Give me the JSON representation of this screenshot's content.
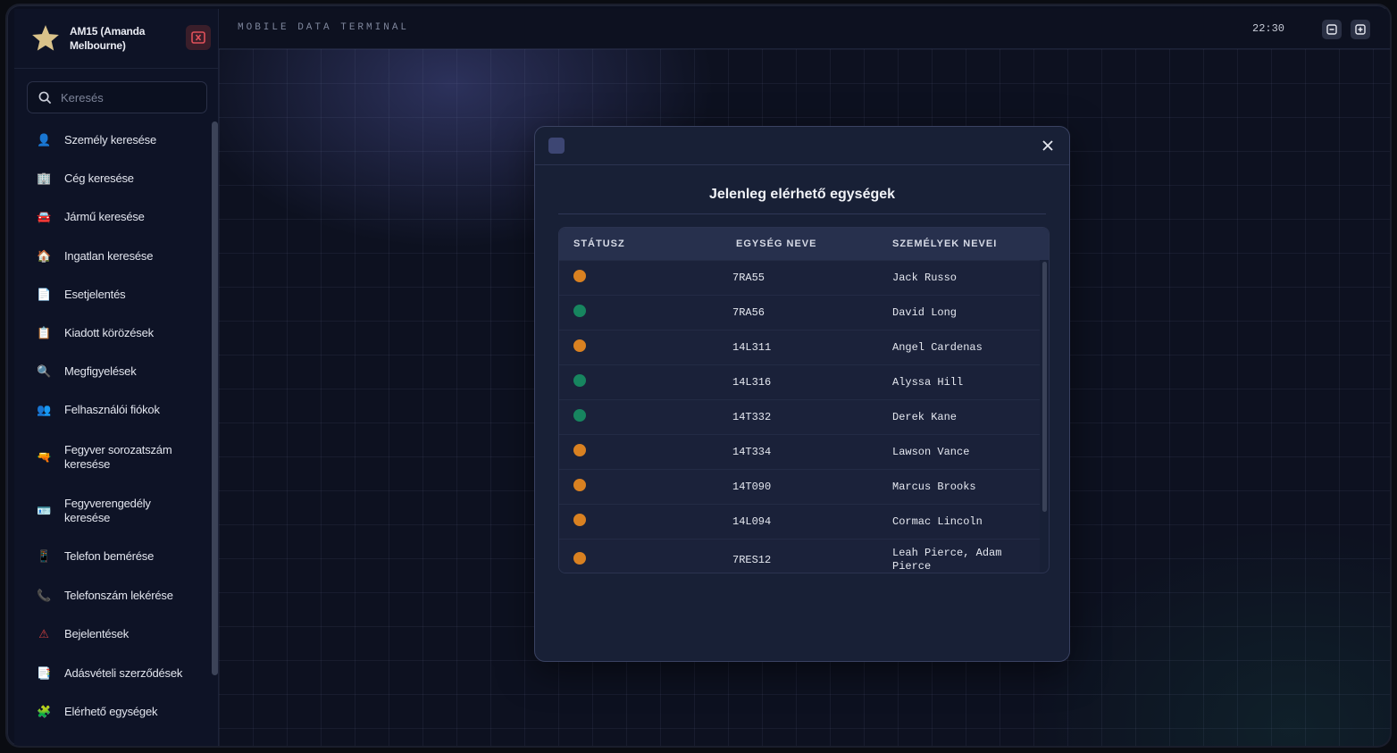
{
  "sidebar": {
    "user": "AM15 (Amanda Melbourne)",
    "search_placeholder": "Keresés",
    "items": [
      {
        "label": "Személy keresése",
        "icon": "person-icon",
        "color": "#4a7fc9"
      },
      {
        "label": "Cég keresése",
        "icon": "building-icon",
        "color": "#c98a3a"
      },
      {
        "label": "Jármű keresése",
        "icon": "car-icon",
        "color": "#d24a4a"
      },
      {
        "label": "Ingatlan keresése",
        "icon": "house-icon",
        "color": "#d8653a"
      },
      {
        "label": "Esetjelentés",
        "icon": "report-icon",
        "color": "#8aa0c8"
      },
      {
        "label": "Kiadott körözések",
        "icon": "wanted-icon",
        "color": "#b0603a"
      },
      {
        "label": "Megfigyelések",
        "icon": "magnifier-icon",
        "color": "#7aa6d6"
      },
      {
        "label": "Felhasználói fiókok",
        "icon": "users-icon",
        "color": "#4a78c0"
      },
      {
        "label": "Fegyver sorozatszám keresése",
        "icon": "gun-icon",
        "color": "#9aa2b4"
      },
      {
        "label": "Fegyverengedély keresése",
        "icon": "license-icon",
        "color": "#3aa070"
      },
      {
        "label": "Telefon bemérése",
        "icon": "phone-icon",
        "color": "#7a90b8"
      },
      {
        "label": "Telefonszám lekérése",
        "icon": "phone-number-icon",
        "color": "#c04a4a"
      },
      {
        "label": "Bejelentések",
        "icon": "warning-icon",
        "color": "#d04040"
      },
      {
        "label": "Adásvételi szerződések",
        "icon": "contract-icon",
        "color": "#b0a030"
      },
      {
        "label": "Elérhető egységek",
        "icon": "units-icon",
        "color": "#6a7a98"
      }
    ]
  },
  "topbar": {
    "title": "MOBILE DATA TERMINAL",
    "time": "22:30"
  },
  "modal": {
    "title": "Jelenleg elérhető egységek",
    "columns": [
      "STÁTUSZ",
      "EGYSÉG NEVE",
      "SZEMÉLYEK NEVEI"
    ],
    "rows": [
      {
        "status": "busy",
        "status_color": "#d98121",
        "unit": "7RA55",
        "persons": "Jack Russo"
      },
      {
        "status": "available",
        "status_color": "#17855f",
        "unit": "7RA56",
        "persons": "David Long"
      },
      {
        "status": "busy",
        "status_color": "#d98121",
        "unit": "14L311",
        "persons": "Angel Cardenas"
      },
      {
        "status": "available",
        "status_color": "#17855f",
        "unit": "14L316",
        "persons": "Alyssa Hill"
      },
      {
        "status": "available",
        "status_color": "#17855f",
        "unit": "14T332",
        "persons": "Derek Kane"
      },
      {
        "status": "busy",
        "status_color": "#d98121",
        "unit": "14T334",
        "persons": "Lawson Vance"
      },
      {
        "status": "busy",
        "status_color": "#d98121",
        "unit": "14T090",
        "persons": "Marcus Brooks"
      },
      {
        "status": "busy",
        "status_color": "#d98121",
        "unit": "14L094",
        "persons": "Cormac Lincoln"
      },
      {
        "status": "busy",
        "status_color": "#d98121",
        "unit": "7RES12",
        "persons": "Leah Pierce, Adam Pierce"
      }
    ]
  }
}
